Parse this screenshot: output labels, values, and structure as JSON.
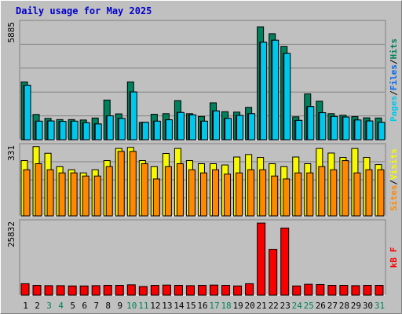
{
  "title": "Daily usage for May 2025",
  "chart_data": [
    {
      "type": "bar",
      "panel": "pages-files-hits",
      "categories": [
        "1",
        "2",
        "3",
        "4",
        "5",
        "6",
        "7",
        "8",
        "9",
        "10",
        "11",
        "12",
        "13",
        "14",
        "15",
        "16",
        "17",
        "18",
        "19",
        "20",
        "21",
        "22",
        "23",
        "24",
        "25",
        "26",
        "27",
        "28",
        "29",
        "30",
        "31"
      ],
      "ymax_label": "5885",
      "ylim": [
        0,
        5885
      ],
      "weekend_days": [
        "3",
        "4",
        "10",
        "11",
        "17",
        "18",
        "24",
        "25",
        "31"
      ],
      "series": [
        {
          "name": "Hits",
          "color": "#00805c",
          "values": [
            2930,
            1280,
            1080,
            1020,
            1020,
            1000,
            1100,
            2010,
            1310,
            2930,
            880,
            1290,
            1320,
            1980,
            1320,
            1180,
            1870,
            1420,
            1400,
            1640,
            5720,
            5370,
            4720,
            1160,
            2320,
            1950,
            1320,
            1240,
            1170,
            1110,
            1100
          ]
        },
        {
          "name": "Files",
          "color": "#0066f0",
          "values": [
            2760,
            940,
            950,
            930,
            940,
            860,
            800,
            1210,
            1080,
            2420,
            880,
            940,
            1010,
            1380,
            1260,
            940,
            1460,
            1080,
            1230,
            1320,
            4940,
            5040,
            4370,
            980,
            1680,
            1370,
            1180,
            1150,
            1000,
            950,
            880
          ]
        },
        {
          "name": "Pages",
          "color": "#00c8ec",
          "values": [
            2760,
            940,
            950,
            930,
            940,
            860,
            800,
            1210,
            1080,
            2420,
            880,
            940,
            1010,
            1380,
            1260,
            940,
            1460,
            1080,
            1230,
            1320,
            4940,
            5040,
            4370,
            980,
            1680,
            1370,
            1180,
            1150,
            1000,
            950,
            880
          ]
        }
      ]
    },
    {
      "type": "bar",
      "panel": "visits-sites",
      "categories": [
        "1",
        "2",
        "3",
        "4",
        "5",
        "6",
        "7",
        "8",
        "9",
        "10",
        "11",
        "12",
        "13",
        "14",
        "15",
        "16",
        "17",
        "18",
        "19",
        "20",
        "21",
        "22",
        "23",
        "24",
        "25",
        "26",
        "27",
        "28",
        "29",
        "30",
        "31"
      ],
      "ymax_label": "331",
      "ylim": [
        0,
        331
      ],
      "series": [
        {
          "name": "Visits",
          "color": "#f8f800",
          "values": [
            265,
            332,
            300,
            236,
            221,
            206,
            221,
            265,
            323,
            328,
            265,
            236,
            299,
            323,
            265,
            250,
            250,
            244,
            282,
            294,
            280,
            250,
            236,
            282,
            250,
            323,
            301,
            280,
            323,
            280,
            246
          ]
        },
        {
          "name": "Sites",
          "color": "#ff8800",
          "values": [
            221,
            250,
            221,
            206,
            206,
            191,
            191,
            236,
            309,
            309,
            250,
            177,
            236,
            250,
            221,
            206,
            221,
            200,
            206,
            221,
            221,
            191,
            177,
            206,
            206,
            236,
            221,
            265,
            206,
            221,
            221
          ]
        }
      ]
    },
    {
      "type": "bar",
      "panel": "kbytes",
      "categories": [
        "1",
        "2",
        "3",
        "4",
        "5",
        "6",
        "7",
        "8",
        "9",
        "10",
        "11",
        "12",
        "13",
        "14",
        "15",
        "16",
        "17",
        "18",
        "19",
        "20",
        "21",
        "22",
        "23",
        "24",
        "25",
        "26",
        "27",
        "28",
        "29",
        "30",
        "31"
      ],
      "ymax_label": "25832",
      "ylim": [
        0,
        25832
      ],
      "series": [
        {
          "name": "kB F",
          "color": "#f80000",
          "values": [
            4100,
            3500,
            3400,
            3400,
            3300,
            3300,
            3400,
            3500,
            3500,
            3700,
            3100,
            3500,
            3600,
            3500,
            3400,
            3500,
            3600,
            3500,
            3300,
            4100,
            25800,
            16400,
            24000,
            3300,
            3900,
            3800,
            3500,
            3500,
            3400,
            3500,
            3500
          ]
        }
      ]
    }
  ],
  "right_labels": {
    "top": [
      {
        "text": "Pages",
        "color": "#00c8ec"
      },
      {
        "text": "/",
        "color": "#000000"
      },
      {
        "text": "Files",
        "color": "#0066f0"
      },
      {
        "text": "/",
        "color": "#000000"
      },
      {
        "text": "Hits",
        "color": "#00805c"
      }
    ],
    "middle": [
      {
        "text": "Sites",
        "color": "#ff8800"
      },
      {
        "text": "/",
        "color": "#000000"
      },
      {
        "text": "Visits",
        "color": "#f8f800"
      }
    ],
    "bottom": [
      {
        "text": "kB F",
        "color": "#f80000"
      }
    ]
  },
  "colors": {
    "frame": "#c0c0c0",
    "grid": "#808080",
    "title": "#0000cc",
    "weekday_label": "#000000",
    "weekend_label": "#00805c"
  }
}
